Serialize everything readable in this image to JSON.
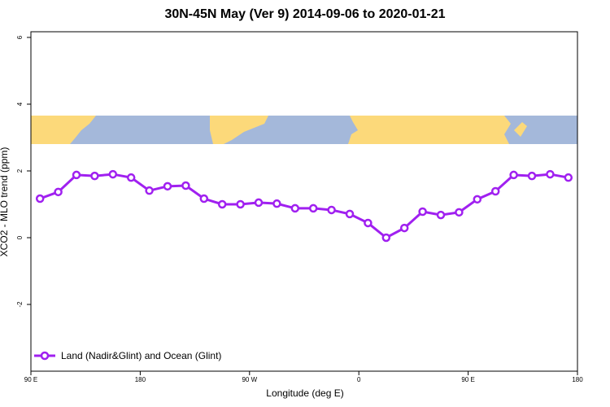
{
  "chart_data": {
    "type": "line",
    "title": "30N-45N May (Ver 9)   2014-09-06 to 2020-01-21",
    "x_label": "Longitude (deg E)",
    "y_label": "XCO2 - MLO trend (ppm)",
    "x": [
      97.5,
      112.5,
      127.5,
      142.5,
      157.5,
      172.5,
      187.5,
      202.5,
      217.5,
      232.5,
      247.5,
      262.5,
      277.5,
      292.5,
      307.5,
      322.5,
      337.5,
      352.5,
      367.5,
      382.5,
      397.5,
      412.5,
      427.5,
      442.5,
      457.5,
      472.5,
      487.5,
      502.5,
      517.5,
      532.5
    ],
    "series": [
      {
        "name": "Land (Nadir&Glint) and Ocean (Glint)",
        "color": "#a020f0",
        "values": [
          1.17,
          1.37,
          1.88,
          1.85,
          1.9,
          1.8,
          1.41,
          1.54,
          1.56,
          1.17,
          1.0,
          1.0,
          1.05,
          1.02,
          0.88,
          0.88,
          0.83,
          0.71,
          0.44,
          0,
          0.29,
          0.78,
          0.68,
          0.76,
          1.15,
          1.39,
          1.88,
          1.85,
          1.9,
          1.8
        ]
      }
    ],
    "xlim": [
      90,
      540
    ],
    "xticks": [
      {
        "value": 90,
        "label": "90 E"
      },
      {
        "value": 180,
        "label": "180"
      },
      {
        "value": 270,
        "label": "90 W"
      },
      {
        "value": 360,
        "label": "0"
      },
      {
        "value": 450,
        "label": "90 E"
      },
      {
        "value": 540,
        "label": "180"
      }
    ],
    "ylim": [
      -4,
      6.17
    ],
    "yticks": [
      -2,
      0,
      2,
      4,
      6
    ],
    "legend": "bottom-left"
  }
}
